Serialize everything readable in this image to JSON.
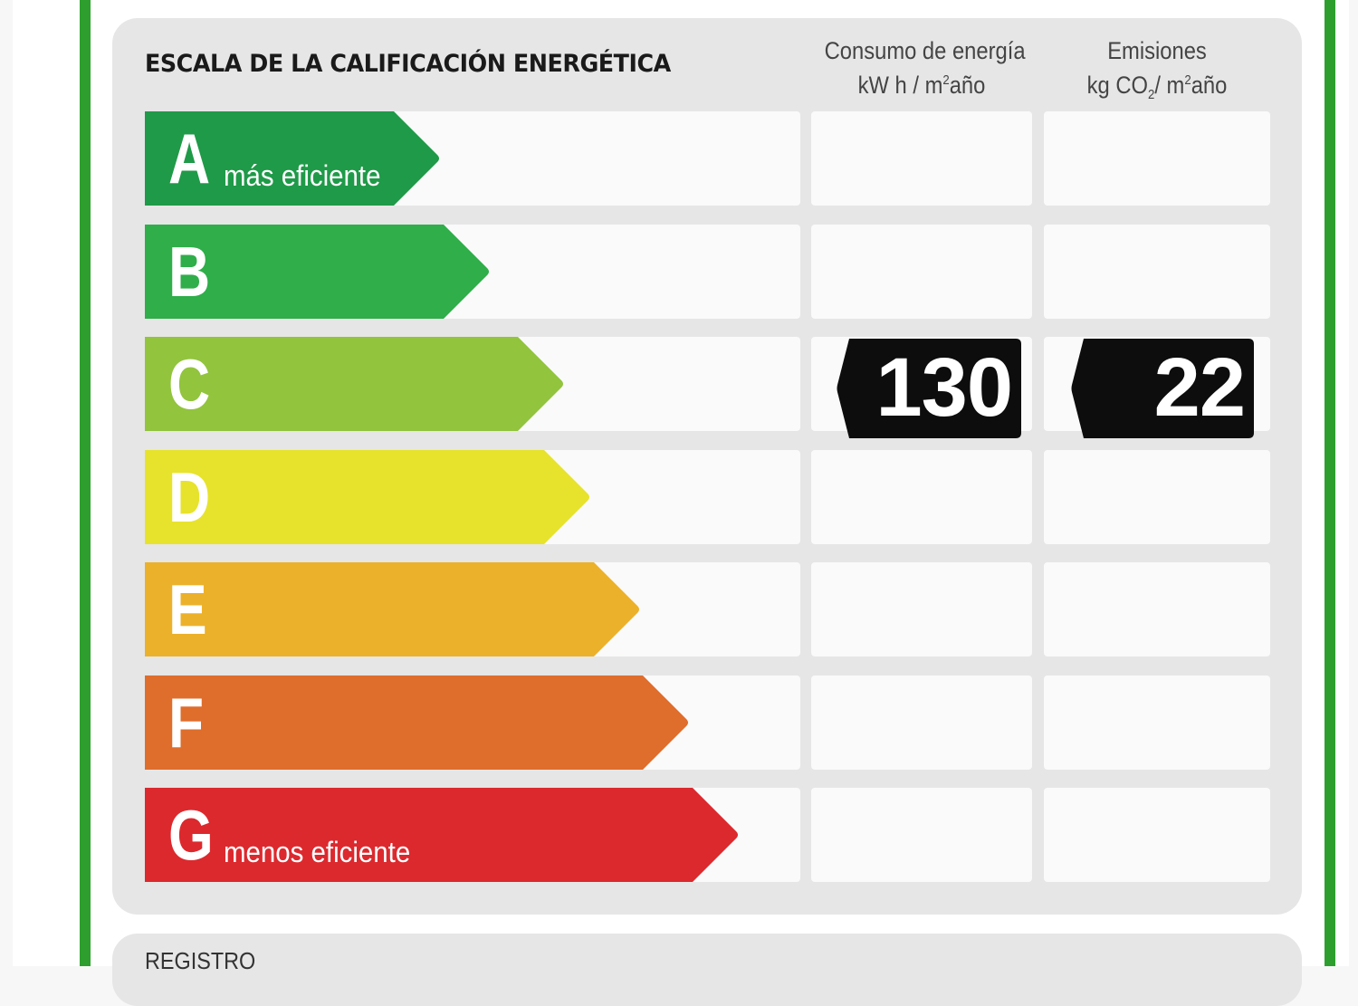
{
  "title": "ESCALA DE LA CALIFICACIÓN ENERGÉTICA",
  "columns": {
    "consumo": {
      "line1": "Consumo de energía",
      "unit_a": "kW h / m",
      "unit_sup": "2",
      "unit_b": "año"
    },
    "emisiones": {
      "line1": "Emisiones",
      "unit_a": "kg CO",
      "unit_sub": "2",
      "unit_mid": "/ m",
      "unit_sup": "2",
      "unit_b": "año"
    }
  },
  "bands": [
    {
      "letter": "A",
      "note": "más eficiente",
      "color": "#1f9a48"
    },
    {
      "letter": "B",
      "note": "",
      "color": "#2fae4a"
    },
    {
      "letter": "C",
      "note": "",
      "color": "#92c43e"
    },
    {
      "letter": "D",
      "note": "",
      "color": "#e7e32c"
    },
    {
      "letter": "E",
      "note": "",
      "color": "#ecb12a"
    },
    {
      "letter": "F",
      "note": "",
      "color": "#df6d2c"
    },
    {
      "letter": "G",
      "note": "menos eficiente",
      "color": "#dc292e"
    }
  ],
  "rating": {
    "band": "C",
    "consumo_value": "130",
    "emisiones_value": "22",
    "tag_color": "#0d0d0d"
  },
  "frame_color": "#2e9f2f",
  "registro_label": "REGISTRO"
}
